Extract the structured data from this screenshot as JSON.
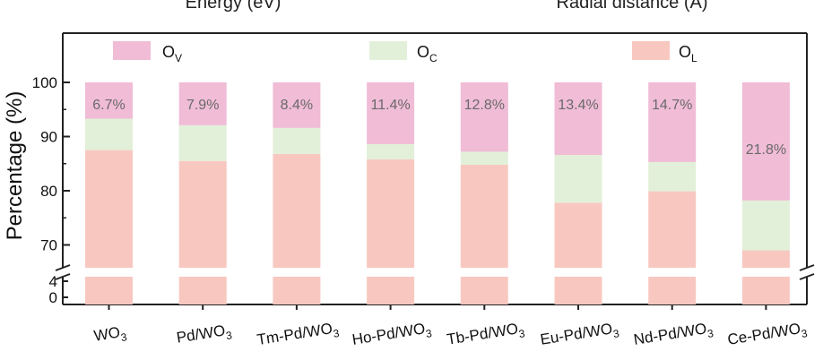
{
  "top_labels": {
    "left": "Energy (eV)",
    "right": "Radial distance (Å)"
  },
  "chart_data": {
    "type": "bar",
    "stacked": true,
    "broken_y_axis": true,
    "ylabel": "Percentage (%)",
    "yticks_upper": [
      70,
      80,
      90,
      100
    ],
    "yticks_lower": [
      0,
      4
    ],
    "categories": [
      {
        "base": "WO",
        "sub": "3",
        "tail": ""
      },
      {
        "base": "Pd/WO",
        "sub": "3",
        "tail": ""
      },
      {
        "base": "Tm-Pd/WO",
        "sub": "3",
        "tail": ""
      },
      {
        "base": "Ho-Pd/WO",
        "sub": "3",
        "tail": ""
      },
      {
        "base": "Tb-Pd/WO",
        "sub": "3",
        "tail": ""
      },
      {
        "base": "Eu-Pd/WO",
        "sub": "3",
        "tail": ""
      },
      {
        "base": "Nd-Pd/WO",
        "sub": "3",
        "tail": ""
      },
      {
        "base": "Ce-Pd/WO",
        "sub": "3",
        "tail": ""
      }
    ],
    "series": [
      {
        "key": "OL",
        "legend_base": "O",
        "legend_sub": "L",
        "color": "#f8c8c0",
        "values": [
          87.5,
          85.5,
          86.8,
          85.8,
          84.8,
          77.8,
          79.9,
          69.0
        ]
      },
      {
        "key": "OC",
        "legend_base": "O",
        "legend_sub": "C",
        "color": "#e2f0d9",
        "values": [
          5.8,
          6.6,
          4.8,
          2.8,
          2.4,
          8.8,
          5.4,
          9.2
        ]
      },
      {
        "key": "OV",
        "legend_base": "O",
        "legend_sub": "V",
        "color": "#f0bcd6",
        "values": [
          6.7,
          7.9,
          8.4,
          11.4,
          12.8,
          13.4,
          14.7,
          21.8
        ]
      }
    ],
    "ov_labels": [
      "6.7%",
      "7.9%",
      "8.4%",
      "11.4%",
      "12.8%",
      "13.4%",
      "14.7%",
      "21.8%"
    ],
    "grid": false,
    "legend_position": "top"
  }
}
